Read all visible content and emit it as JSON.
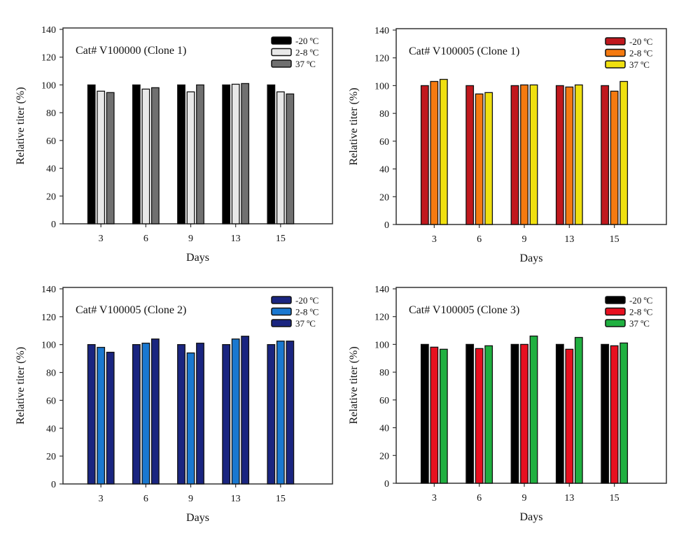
{
  "chart_data": [
    {
      "type": "bar",
      "title": "Cat# V100000 (Clone 1)",
      "xlabel": "Days",
      "ylabel": "Relative titer (%)",
      "ylim": [
        0,
        140
      ],
      "yticks": [
        0,
        20,
        40,
        60,
        80,
        100,
        120,
        140
      ],
      "categories": [
        "3",
        "6",
        "9",
        "13",
        "15"
      ],
      "legend_position": "top-right",
      "series": [
        {
          "name": "-20 ºC",
          "color": "#000000",
          "values": [
            100,
            100,
            100,
            100,
            100
          ]
        },
        {
          "name": "2-8 ºC",
          "color": "#e8e8e8",
          "values": [
            95.5,
            97,
            95,
            100.5,
            95
          ]
        },
        {
          "name": "37 ºC",
          "color": "#707070",
          "values": [
            94.5,
            98,
            100,
            101,
            93.5
          ]
        }
      ]
    },
    {
      "type": "bar",
      "title": "Cat# V100005 (Clone 1)",
      "xlabel": "Days",
      "ylabel": "Relative titer (%)",
      "ylim": [
        0,
        140
      ],
      "yticks": [
        0,
        20,
        40,
        60,
        80,
        100,
        120,
        140
      ],
      "categories": [
        "3",
        "6",
        "9",
        "13",
        "15"
      ],
      "legend_position": "top-right",
      "series": [
        {
          "name": "-20 ºC",
          "color": "#c0181e",
          "values": [
            100,
            100,
            100,
            100,
            100
          ]
        },
        {
          "name": "2-8 ºC",
          "color": "#f57a10",
          "values": [
            103,
            94,
            100.5,
            99,
            96
          ]
        },
        {
          "name": "37 ºC",
          "color": "#f0e010",
          "values": [
            104.5,
            95,
            100.5,
            100.5,
            103
          ]
        }
      ]
    },
    {
      "type": "bar",
      "title": "Cat# V100005 (Clone 2)",
      "xlabel": "Days",
      "ylabel": "Relative titer (%)",
      "ylim": [
        0,
        140
      ],
      "yticks": [
        0,
        20,
        40,
        60,
        80,
        100,
        120,
        140
      ],
      "categories": [
        "3",
        "6",
        "9",
        "13",
        "15"
      ],
      "legend_position": "top-right",
      "series": [
        {
          "name": "-20 ºC",
          "color": "#1a2580",
          "values": [
            100,
            100,
            100,
            100,
            100
          ]
        },
        {
          "name": "2-8 ºC",
          "color": "#1a78d0",
          "values": [
            98,
            101,
            94,
            104,
            102.5
          ]
        },
        {
          "name": "37 ºC",
          "color": "#1a2580",
          "values": [
            94.5,
            104,
            101,
            106,
            102.5
          ]
        }
      ]
    },
    {
      "type": "bar",
      "title": "Cat# V100005 (Clone 3)",
      "xlabel": "Days",
      "ylabel": "Relative titer (%)",
      "ylim": [
        0,
        140
      ],
      "yticks": [
        0,
        20,
        40,
        60,
        80,
        100,
        120,
        140
      ],
      "categories": [
        "3",
        "6",
        "9",
        "13",
        "15"
      ],
      "legend_position": "top-right",
      "series": [
        {
          "name": "-20 ºC",
          "color": "#000000",
          "values": [
            100,
            100,
            100,
            100,
            100
          ]
        },
        {
          "name": "2-8 ºC",
          "color": "#e81020",
          "values": [
            98,
            97,
            100,
            96.5,
            99
          ]
        },
        {
          "name": "37 ºC",
          "color": "#20b040",
          "values": [
            96.5,
            99,
            106,
            105,
            101
          ]
        }
      ]
    }
  ]
}
